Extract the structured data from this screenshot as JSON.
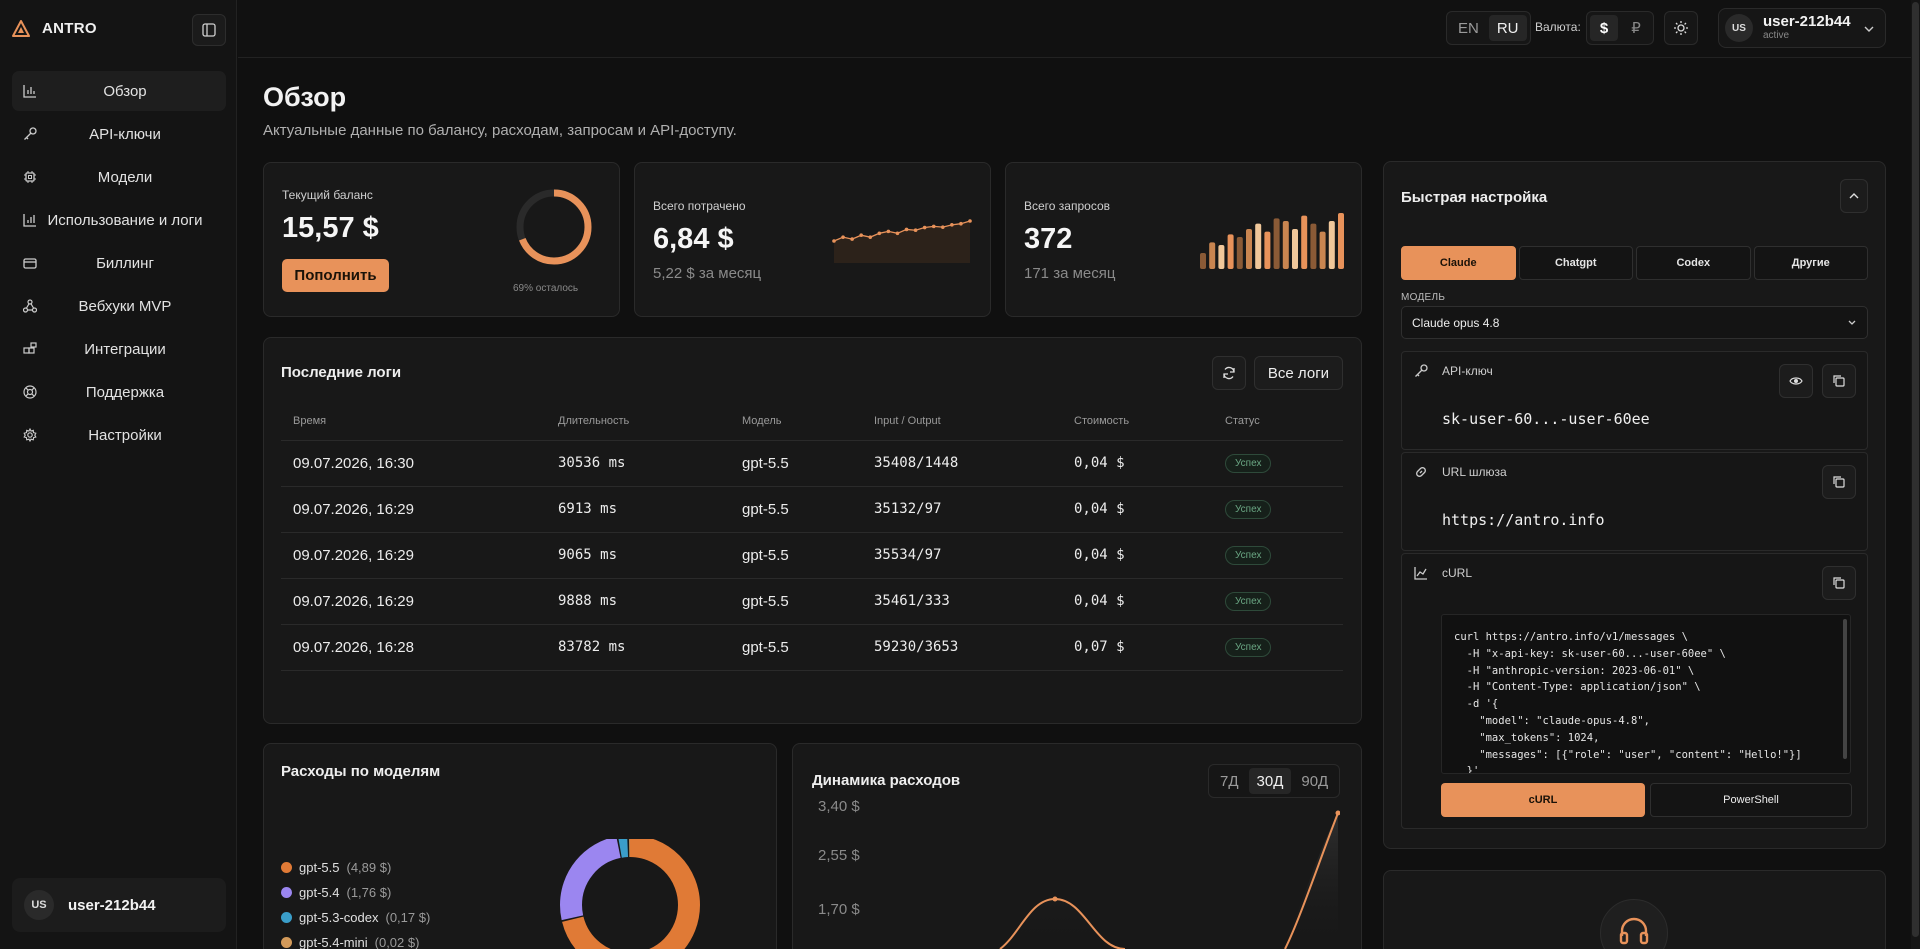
{
  "brand": {
    "name": "ANTRO"
  },
  "sidebar": {
    "items": [
      {
        "label": "Обзор",
        "icon": "bar-chart-icon",
        "active": true
      },
      {
        "label": "API-ключи",
        "icon": "key-icon"
      },
      {
        "label": "Модели",
        "icon": "chip-icon"
      },
      {
        "label": "Использование и логи",
        "icon": "chart-icon"
      },
      {
        "label": "Биллинг",
        "icon": "credit-card-icon"
      },
      {
        "label": "Вебхуки MVP",
        "icon": "webhook-icon"
      },
      {
        "label": "Интеграции",
        "icon": "blocks-icon"
      },
      {
        "label": "Поддержка",
        "icon": "lifebuoy-icon"
      },
      {
        "label": "Настройки",
        "icon": "gear-icon"
      }
    ],
    "user": {
      "initials": "US",
      "name": "user-212b44"
    }
  },
  "topbar": {
    "languages": [
      "EN",
      "RU"
    ],
    "active_language": "RU",
    "currency_label": "Валюта:",
    "currencies": [
      "$",
      "₽"
    ],
    "active_currency": "$",
    "user": {
      "initials": "US",
      "name": "user-212b44",
      "status": "active"
    }
  },
  "page": {
    "title": "Обзор",
    "subtitle": "Актуальные данные по балансу, расходам, запросам и API-доступу."
  },
  "stats": {
    "balance": {
      "label": "Текущий баланс",
      "value": "15,57 $",
      "button": "Пополнить",
      "remaining_fraction": 0.69,
      "remaining_label": "69% осталось"
    },
    "spent": {
      "label": "Всего потрачено",
      "value": "6,84 $",
      "sub": "5,22 $ за месяц",
      "spark": [
        2,
        3,
        2.5,
        3.5,
        3,
        4,
        4.5,
        4,
        5,
        4.8,
        5.5,
        5.8,
        5.6,
        6.2,
        6.5,
        7.2
      ]
    },
    "requests": {
      "label": "Всего запросов",
      "value": "372",
      "sub": "171 за месяц",
      "bars": [
        12,
        20,
        18,
        26,
        24,
        30,
        34,
        28,
        38,
        36,
        30,
        40,
        34,
        28,
        36,
        42
      ]
    }
  },
  "logs": {
    "title": "Последние логи",
    "all_button": "Все логи",
    "columns": [
      "Время",
      "Длительность",
      "Модель",
      "Input / Output",
      "Стоимость",
      "Статус"
    ],
    "rows": [
      [
        "09.07.2026, 16:30",
        "30536 ms",
        "gpt-5.5",
        "35408/1448",
        "0,04 $",
        "Успех"
      ],
      [
        "09.07.2026, 16:29",
        "6913 ms",
        "gpt-5.5",
        "35132/97",
        "0,04 $",
        "Успех"
      ],
      [
        "09.07.2026, 16:29",
        "9065 ms",
        "gpt-5.5",
        "35534/97",
        "0,04 $",
        "Успех"
      ],
      [
        "09.07.2026, 16:29",
        "9888 ms",
        "gpt-5.5",
        "35461/333",
        "0,04 $",
        "Успех"
      ],
      [
        "09.07.2026, 16:28",
        "83782 ms",
        "gpt-5.5",
        "59230/3653",
        "0,07 $",
        "Успех"
      ]
    ]
  },
  "spend_by_model": {
    "title": "Расходы по моделям",
    "items": [
      {
        "name": "gpt-5.5",
        "amount": "(4,89 $)",
        "value": 4.89,
        "color": "#e07a36"
      },
      {
        "name": "gpt-5.4",
        "amount": "(1,76 $)",
        "value": 1.76,
        "color": "#9b86f0"
      },
      {
        "name": "gpt-5.3-codex",
        "amount": "(0,17 $)",
        "value": 0.17,
        "color": "#3a9ec9"
      },
      {
        "name": "gpt-5.4-mini",
        "amount": "(0,02 $)",
        "value": 0.02,
        "color": "#d39a5a"
      }
    ]
  },
  "spend_dynamics": {
    "title": "Динамика расходов",
    "ranges": [
      "7Д",
      "30Д",
      "90Д"
    ],
    "active_range": "30Д",
    "y_ticks": [
      "3,40 $",
      "2,55 $",
      "1,70 $"
    ]
  },
  "quick_setup": {
    "title": "Быстрая настройка",
    "providers": [
      "Claude",
      "Chatgpt",
      "Codex",
      "Другие"
    ],
    "active_provider": "Claude",
    "model_label": "МОДЕЛЬ",
    "model_value": "Claude opus 4.8",
    "api_key": {
      "label": "API-ключ",
      "value": "sk-user-60...-user-60ee"
    },
    "gateway": {
      "label": "URL шлюза",
      "value": "https://antro.info"
    },
    "curl": {
      "label": "cURL",
      "code": "curl https://antro.info/v1/messages \\\n  -H \"x-api-key: sk-user-60...-user-60ee\" \\\n  -H \"anthropic-version: 2023-06-01\" \\\n  -H \"Content-Type: application/json\" \\\n  -d '{\n    \"model\": \"claude-opus-4.8\",\n    \"max_tokens\": 1024,\n    \"messages\": [{\"role\": \"user\", \"content\": \"Hello!\"}]\n  }'",
      "tabs": [
        "cURL",
        "PowerShell"
      ],
      "active_tab": "cURL"
    }
  },
  "colors": {
    "accent": "#e8925a",
    "background": "#101010",
    "card": "#181818",
    "success": "#6aa683"
  }
}
